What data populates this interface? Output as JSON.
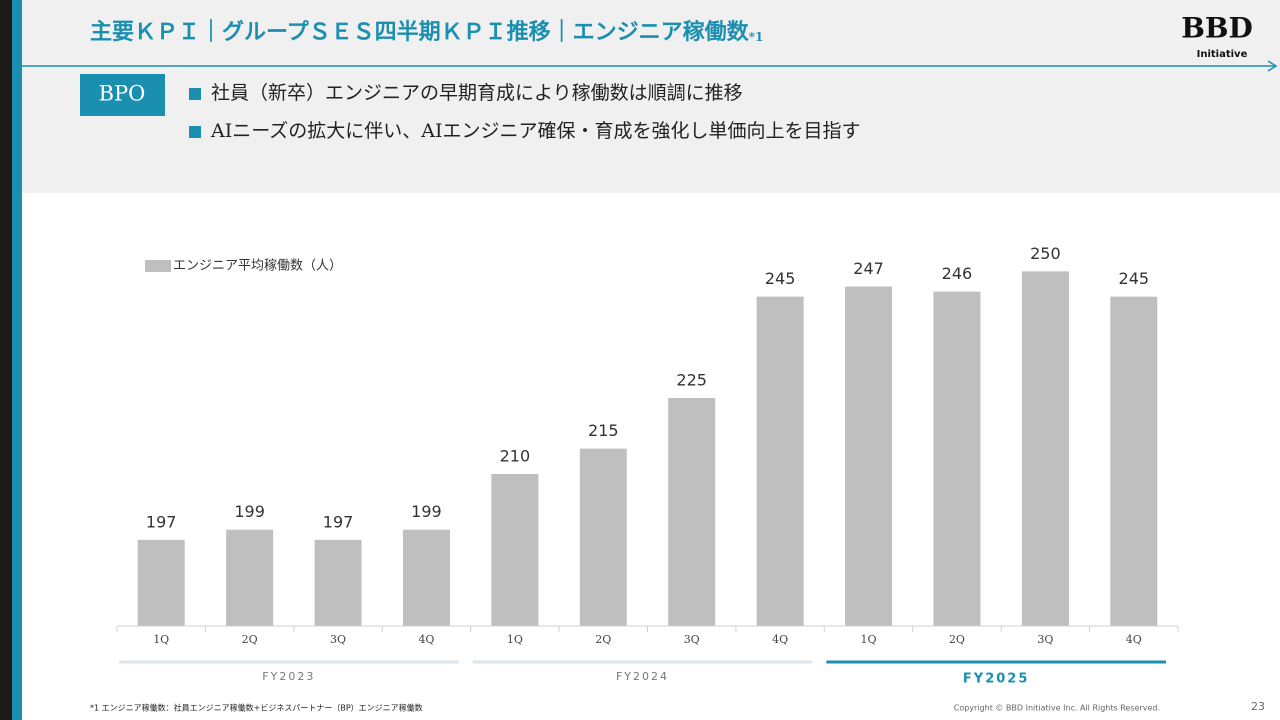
{
  "header": {
    "title": "主要ＫＰＩ｜グループＳＥＳ四半期ＫＰＩ推移｜エンジニア稼働数",
    "title_note": "*1"
  },
  "logo": {
    "mark": "BBD",
    "sub": "Initiative"
  },
  "section": {
    "tag": "BPO",
    "bullets": [
      "社員（新卒）エンジニアの早期育成により稼働数は順調に推移",
      "AIニーズの拡大に伴い、AIエンジニア確保・育成を強化し単価向上を目指す"
    ]
  },
  "chart_data": {
    "type": "bar",
    "categories": [
      "1Q",
      "2Q",
      "3Q",
      "4Q",
      "1Q",
      "2Q",
      "3Q",
      "4Q",
      "1Q",
      "2Q",
      "3Q",
      "4Q"
    ],
    "series": [
      {
        "name": "エンジニア平均稼働数（人）",
        "color": "#bfbfbf",
        "values": [
          197,
          199,
          197,
          199,
          210,
          215,
          225,
          245,
          247,
          246,
          250,
          245
        ]
      }
    ],
    "ylim": [
      180,
      255
    ],
    "groups": [
      {
        "label": "FY2023",
        "color": "#dbe6ee"
      },
      {
        "label": "FY2024",
        "color": "#dbe6ee"
      },
      {
        "label": "FY2025",
        "color": "#1b8fb0"
      }
    ]
  },
  "footer": {
    "note": "*1 エンジニア稼働数：社員エンジニア稼働数+ビジネスパートナー（BP）エンジニア稼働数",
    "copyright": "Copyright © BBD Initiative Inc. All Rights Reserved.",
    "page": "23"
  }
}
